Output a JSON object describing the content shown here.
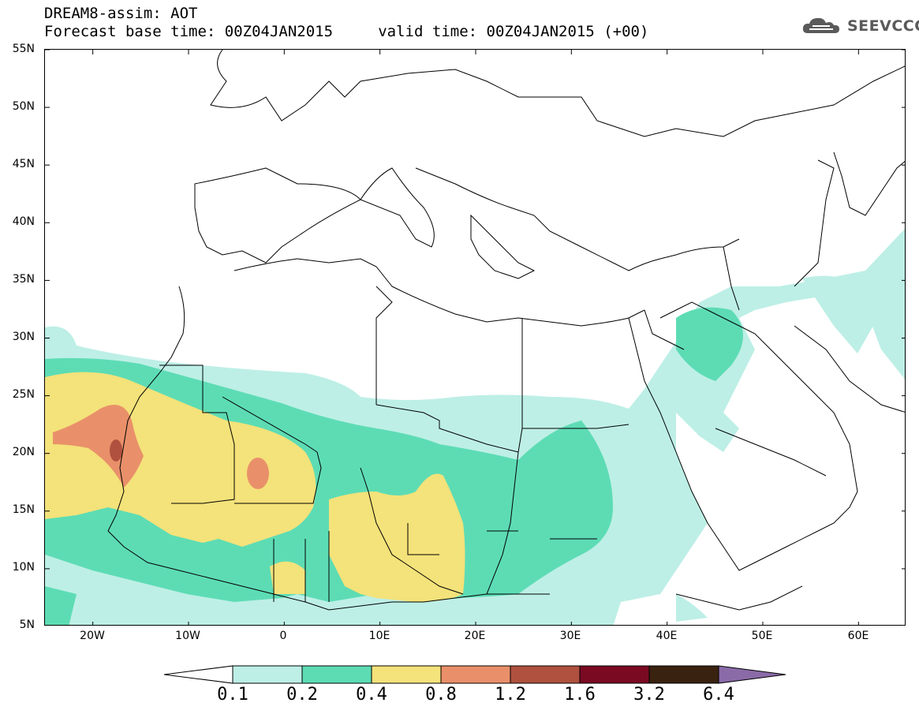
{
  "header": {
    "title_line1": "DREAM8-assim: AOT",
    "title_line2": "Forecast base time: 00Z04JAN2015     valid time: 00Z04JAN2015 (+00)"
  },
  "logo": {
    "text": "SEEVCCC",
    "icon": "cloud-icon"
  },
  "map": {
    "lat_labels": [
      "55N",
      "50N",
      "45N",
      "40N",
      "35N",
      "30N",
      "25N",
      "20N",
      "15N",
      "10N",
      "5N"
    ],
    "lon_labels": [
      "20W",
      "10W",
      "0",
      "10E",
      "20E",
      "30E",
      "40E",
      "50E",
      "60E"
    ],
    "lat_range": [
      5,
      55
    ],
    "lon_range": [
      -25,
      65
    ]
  },
  "legend": {
    "levels": [
      "0.1",
      "0.2",
      "0.4",
      "0.8",
      "1.2",
      "1.6",
      "3.2",
      "6.4"
    ],
    "colors": [
      "#ffffff",
      "#bdefe6",
      "#5ddcb4",
      "#f4e27a",
      "#e9906a",
      "#b0513f",
      "#7a0a22",
      "#3a2210",
      "#8a6ba8"
    ]
  },
  "colors": {
    "c01": "#bdefe6",
    "c02": "#5ddcb4",
    "c04": "#f4e27a",
    "c08": "#e9906a",
    "c12": "#b0513f",
    "c16": "#7a0a22"
  }
}
